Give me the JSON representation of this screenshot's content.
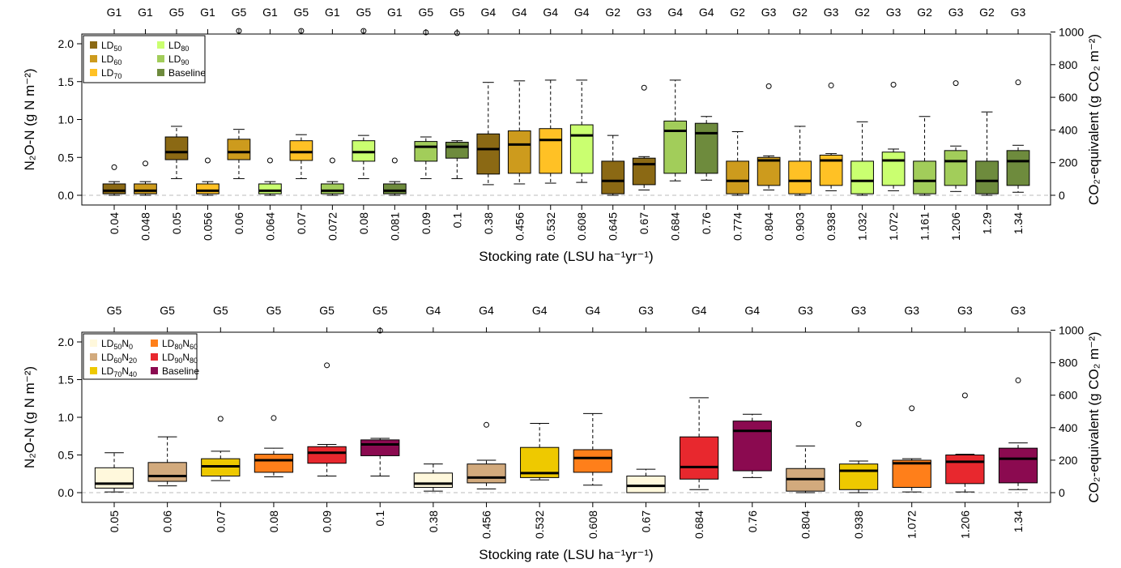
{
  "chart_data": [
    {
      "type": "box",
      "xlabel": "Stocking rate (LSU  ha⁻¹yr⁻¹)",
      "ylabel": "N₂O-N (g N m⁻²)",
      "ylabel_right": "CO₂-equivalent (g CO₂ m⁻²)",
      "ylim": [
        0,
        2.2
      ],
      "y_ticks": [
        "0.0",
        "0.5",
        "1.0",
        "1.5",
        "2.0"
      ],
      "y_ticks_right": [
        "0",
        "200",
        "400",
        "600",
        "800",
        "1000"
      ],
      "legend_position": "top-left",
      "legend": [
        {
          "name": "LD50",
          "label": "LD",
          "sub": "50",
          "color": "#8B6914"
        },
        {
          "name": "LD60",
          "label": "LD",
          "sub": "60",
          "color": "#CD9B1D"
        },
        {
          "name": "LD70",
          "label": "LD",
          "sub": "70",
          "color": "#FFC125"
        },
        {
          "name": "LD80",
          "label": "LD",
          "sub": "80",
          "color": "#CAFF70"
        },
        {
          "name": "LD90",
          "label": "LD",
          "sub": "90",
          "color": "#A2CD5A"
        },
        {
          "name": "Baseline",
          "label": "Baseline",
          "sub": "",
          "color": "#6E8B3D"
        }
      ],
      "boxes": [
        {
          "x": "0.04",
          "group": "G1",
          "series": "LD50",
          "min": 0,
          "q1": 0.02,
          "median": 0.06,
          "q3": 0.15,
          "max": 0.18,
          "outliers": [
            0.37
          ]
        },
        {
          "x": "0.048",
          "group": "G1",
          "series": "LD60",
          "min": 0,
          "q1": 0.02,
          "median": 0.06,
          "q3": 0.15,
          "max": 0.18,
          "outliers": [
            0.42
          ]
        },
        {
          "x": "0.05",
          "group": "G5",
          "series": "LD50",
          "min": 0.22,
          "q1": 0.47,
          "median": 0.57,
          "q3": 0.77,
          "max": 0.91,
          "outliers": []
        },
        {
          "x": "0.056",
          "group": "G1",
          "series": "LD70",
          "min": 0,
          "q1": 0.02,
          "median": 0.06,
          "q3": 0.15,
          "max": 0.18,
          "outliers": [
            0.46
          ]
        },
        {
          "x": "0.06",
          "group": "G5",
          "series": "LD60",
          "min": 0.22,
          "q1": 0.47,
          "median": 0.57,
          "q3": 0.74,
          "max": 0.87,
          "outliers": [
            2.17
          ]
        },
        {
          "x": "0.064",
          "group": "G1",
          "series": "LD80",
          "min": 0,
          "q1": 0.02,
          "median": 0.06,
          "q3": 0.15,
          "max": 0.18,
          "outliers": [
            0.46
          ]
        },
        {
          "x": "0.07",
          "group": "G5",
          "series": "LD70",
          "min": 0.22,
          "q1": 0.46,
          "median": 0.57,
          "q3": 0.72,
          "max": 0.8,
          "outliers": [
            2.17
          ]
        },
        {
          "x": "0.072",
          "group": "G1",
          "series": "LD90",
          "min": 0,
          "q1": 0.02,
          "median": 0.06,
          "q3": 0.15,
          "max": 0.18,
          "outliers": [
            0.46
          ]
        },
        {
          "x": "0.08",
          "group": "G5",
          "series": "LD80",
          "min": 0.22,
          "q1": 0.45,
          "median": 0.57,
          "q3": 0.72,
          "max": 0.79,
          "outliers": [
            2.17
          ]
        },
        {
          "x": "0.081",
          "group": "G1",
          "series": "Baseline",
          "min": 0,
          "q1": 0.02,
          "median": 0.06,
          "q3": 0.15,
          "max": 0.18,
          "outliers": [
            0.46
          ]
        },
        {
          "x": "0.09",
          "group": "G5",
          "series": "LD90",
          "min": 0.22,
          "q1": 0.45,
          "median": 0.64,
          "q3": 0.71,
          "max": 0.77,
          "outliers": [
            2.15
          ]
        },
        {
          "x": "0.1",
          "group": "G5",
          "series": "Baseline",
          "min": 0.22,
          "q1": 0.49,
          "median": 0.64,
          "q3": 0.7,
          "max": 0.72,
          "outliers": [
            2.14
          ]
        },
        {
          "x": "0.38",
          "group": "G4",
          "series": "LD50",
          "min": 0.14,
          "q1": 0.28,
          "median": 0.61,
          "q3": 0.81,
          "max": 1.49,
          "outliers": []
        },
        {
          "x": "0.456",
          "group": "G4",
          "series": "LD60",
          "min": 0.15,
          "q1": 0.29,
          "median": 0.67,
          "q3": 0.85,
          "max": 1.51,
          "outliers": []
        },
        {
          "x": "0.532",
          "group": "G4",
          "series": "LD70",
          "min": 0.16,
          "q1": 0.29,
          "median": 0.73,
          "q3": 0.88,
          "max": 1.52,
          "outliers": []
        },
        {
          "x": "0.608",
          "group": "G4",
          "series": "LD80",
          "min": 0.17,
          "q1": 0.29,
          "median": 0.79,
          "q3": 0.93,
          "max": 1.52,
          "outliers": []
        },
        {
          "x": "0.645",
          "group": "G2",
          "series": "LD50",
          "min": 0,
          "q1": 0.02,
          "median": 0.19,
          "q3": 0.45,
          "max": 0.79,
          "outliers": []
        },
        {
          "x": "0.67",
          "group": "G3",
          "series": "LD50",
          "min": 0.07,
          "q1": 0.14,
          "median": 0.41,
          "q3": 0.49,
          "max": 0.51,
          "outliers": [
            1.42
          ]
        },
        {
          "x": "0.684",
          "group": "G4",
          "series": "LD90",
          "min": 0.19,
          "q1": 0.29,
          "median": 0.85,
          "q3": 0.98,
          "max": 1.52,
          "outliers": []
        },
        {
          "x": "0.76",
          "group": "G4",
          "series": "Baseline",
          "min": 0.2,
          "q1": 0.29,
          "median": 0.82,
          "q3": 0.95,
          "max": 1.04,
          "outliers": []
        },
        {
          "x": "0.774",
          "group": "G2",
          "series": "LD60",
          "min": 0,
          "q1": 0.02,
          "median": 0.19,
          "q3": 0.45,
          "max": 0.84,
          "outliers": []
        },
        {
          "x": "0.804",
          "group": "G3",
          "series": "LD60",
          "min": 0.07,
          "q1": 0.13,
          "median": 0.46,
          "q3": 0.5,
          "max": 0.52,
          "outliers": [
            1.44
          ]
        },
        {
          "x": "0.903",
          "group": "G2",
          "series": "LD70",
          "min": 0,
          "q1": 0.02,
          "median": 0.19,
          "q3": 0.45,
          "max": 0.91,
          "outliers": []
        },
        {
          "x": "0.938",
          "group": "G3",
          "series": "LD70",
          "min": 0.06,
          "q1": 0.13,
          "median": 0.46,
          "q3": 0.53,
          "max": 0.55,
          "outliers": [
            1.45
          ]
        },
        {
          "x": "1.032",
          "group": "G2",
          "series": "LD80",
          "min": 0,
          "q1": 0.02,
          "median": 0.19,
          "q3": 0.45,
          "max": 0.97,
          "outliers": []
        },
        {
          "x": "1.072",
          "group": "G3",
          "series": "LD80",
          "min": 0.06,
          "q1": 0.13,
          "median": 0.46,
          "q3": 0.57,
          "max": 0.61,
          "outliers": [
            1.46
          ]
        },
        {
          "x": "1.161",
          "group": "G2",
          "series": "LD90",
          "min": 0,
          "q1": 0.02,
          "median": 0.19,
          "q3": 0.45,
          "max": 1.04,
          "outliers": []
        },
        {
          "x": "1.206",
          "group": "G3",
          "series": "LD90",
          "min": 0.05,
          "q1": 0.13,
          "median": 0.45,
          "q3": 0.59,
          "max": 0.65,
          "outliers": [
            1.48
          ]
        },
        {
          "x": "1.29",
          "group": "G2",
          "series": "Baseline",
          "min": 0,
          "q1": 0.02,
          "median": 0.19,
          "q3": 0.45,
          "max": 1.1,
          "outliers": []
        },
        {
          "x": "1.34",
          "group": "G3",
          "series": "Baseline",
          "min": 0.04,
          "q1": 0.13,
          "median": 0.45,
          "q3": 0.59,
          "max": 0.66,
          "outliers": [
            1.49
          ]
        }
      ]
    },
    {
      "type": "box",
      "xlabel": "Stocking rate (LSU  ha⁻¹yr⁻¹)",
      "ylabel": "N₂O-N (g N m⁻²)",
      "ylabel_right": "CO₂-equivalent (g CO₂ m⁻²)",
      "ylim": [
        0,
        2.2
      ],
      "y_ticks": [
        "0.0",
        "0.5",
        "1.0",
        "1.5",
        "2.0"
      ],
      "y_ticks_right": [
        "0",
        "200",
        "400",
        "600",
        "800",
        "1000"
      ],
      "legend_position": "top-left",
      "legend": [
        {
          "name": "LD50N0",
          "label": "LD",
          "sub": "50",
          "label2": "N",
          "sub2": "0",
          "color": "#FFF8DC"
        },
        {
          "name": "LD60N20",
          "label": "LD",
          "sub": "60",
          "label2": "N",
          "sub2": "20",
          "color": "#D2AA7D"
        },
        {
          "name": "LD70N40",
          "label": "LD",
          "sub": "70",
          "label2": "N",
          "sub2": "40",
          "color": "#EEC900"
        },
        {
          "name": "LD80N60",
          "label": "LD",
          "sub": "80",
          "label2": "N",
          "sub2": "60",
          "color": "#FF7F1A"
        },
        {
          "name": "LD90N80",
          "label": "LD",
          "sub": "90",
          "label2": "N",
          "sub2": "80",
          "color": "#E8282E"
        },
        {
          "name": "Baseline",
          "label": "Baseline",
          "sub": "",
          "color": "#8B0A50"
        }
      ],
      "boxes": [
        {
          "x": "0.05",
          "group": "G5",
          "series": "LD50N0",
          "min": 0.01,
          "q1": 0.06,
          "median": 0.12,
          "q3": 0.33,
          "max": 0.53,
          "outliers": []
        },
        {
          "x": "0.06",
          "group": "G5",
          "series": "LD60N20",
          "min": 0.09,
          "q1": 0.15,
          "median": 0.22,
          "q3": 0.4,
          "max": 0.74,
          "outliers": []
        },
        {
          "x": "0.07",
          "group": "G5",
          "series": "LD70N40",
          "min": 0.16,
          "q1": 0.22,
          "median": 0.35,
          "q3": 0.45,
          "max": 0.55,
          "outliers": [
            0.98
          ]
        },
        {
          "x": "0.08",
          "group": "G5",
          "series": "LD80N60",
          "min": 0.21,
          "q1": 0.27,
          "median": 0.43,
          "q3": 0.51,
          "max": 0.59,
          "outliers": [
            0.99
          ]
        },
        {
          "x": "0.09",
          "group": "G5",
          "series": "LD90N80",
          "min": 0.22,
          "q1": 0.39,
          "median": 0.53,
          "q3": 0.61,
          "max": 0.64,
          "outliers": [
            1.69
          ]
        },
        {
          "x": "0.1",
          "group": "G5",
          "series": "Baseline",
          "min": 0.22,
          "q1": 0.49,
          "median": 0.64,
          "q3": 0.7,
          "max": 0.72,
          "outliers": [
            2.15
          ]
        },
        {
          "x": "0.38",
          "group": "G4",
          "series": "LD50N0",
          "min": 0.02,
          "q1": 0.07,
          "median": 0.12,
          "q3": 0.26,
          "max": 0.38,
          "outliers": []
        },
        {
          "x": "0.456",
          "group": "G4",
          "series": "LD60N20",
          "min": 0.05,
          "q1": 0.13,
          "median": 0.2,
          "q3": 0.38,
          "max": 0.43,
          "outliers": [
            0.9
          ]
        },
        {
          "x": "0.532",
          "group": "G4",
          "series": "LD70N40",
          "min": 0.17,
          "q1": 0.2,
          "median": 0.26,
          "q3": 0.6,
          "max": 0.92,
          "outliers": []
        },
        {
          "x": "0.608",
          "group": "G4",
          "series": "LD80N60",
          "min": 0.1,
          "q1": 0.27,
          "median": 0.46,
          "q3": 0.57,
          "max": 1.05,
          "outliers": []
        },
        {
          "x": "0.67",
          "group": "G3",
          "series": "LD50N0",
          "min": 0,
          "q1": 0,
          "median": 0.09,
          "q3": 0.22,
          "max": 0.31,
          "outliers": []
        },
        {
          "x": "0.684",
          "group": "G4",
          "series": "LD90N80",
          "min": 0.04,
          "q1": 0.18,
          "median": 0.34,
          "q3": 0.74,
          "max": 1.26,
          "outliers": []
        },
        {
          "x": "0.76",
          "group": "G4",
          "series": "Baseline",
          "min": 0.2,
          "q1": 0.29,
          "median": 0.82,
          "q3": 0.95,
          "max": 1.04,
          "outliers": []
        },
        {
          "x": "0.804",
          "group": "G3",
          "series": "LD60N20",
          "min": 0,
          "q1": 0.02,
          "median": 0.18,
          "q3": 0.32,
          "max": 0.62,
          "outliers": []
        },
        {
          "x": "0.938",
          "group": "G3",
          "series": "LD70N40",
          "min": 0,
          "q1": 0.04,
          "median": 0.29,
          "q3": 0.38,
          "max": 0.42,
          "outliers": [
            0.91
          ]
        },
        {
          "x": "1.072",
          "group": "G3",
          "series": "LD80N60",
          "min": 0.01,
          "q1": 0.07,
          "median": 0.39,
          "q3": 0.43,
          "max": 0.45,
          "outliers": [
            1.12
          ]
        },
        {
          "x": "1.206",
          "group": "G3",
          "series": "LD90N80",
          "min": 0.01,
          "q1": 0.12,
          "median": 0.41,
          "q3": 0.5,
          "max": 0.51,
          "outliers": [
            1.29
          ]
        },
        {
          "x": "1.34",
          "group": "G3",
          "series": "Baseline",
          "min": 0.04,
          "q1": 0.13,
          "median": 0.45,
          "q3": 0.59,
          "max": 0.66,
          "outliers": [
            1.49
          ]
        }
      ]
    }
  ]
}
